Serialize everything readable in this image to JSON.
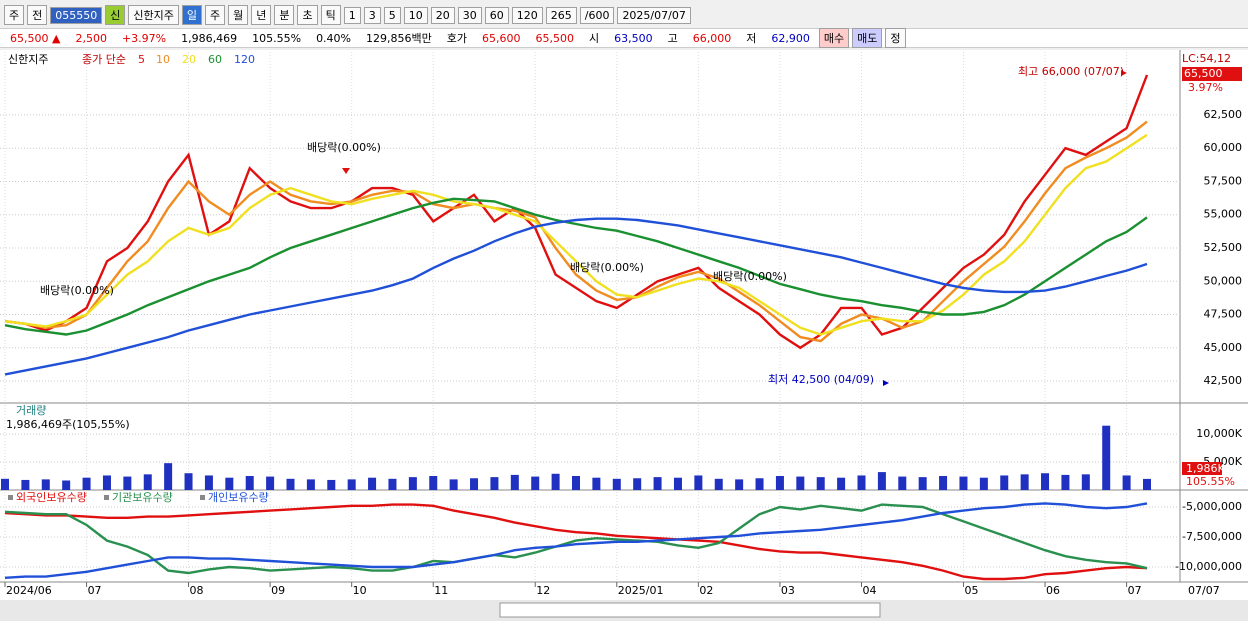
{
  "toolbar": {
    "items": [
      "주",
      "전",
      "055550",
      "신",
      "신한지주",
      "일",
      "주",
      "월",
      "년",
      "분",
      "초",
      "틱",
      "1",
      "3",
      "5",
      "10",
      "20",
      "30",
      "60",
      "120",
      "265",
      "/600",
      "2025/07/07"
    ]
  },
  "quote": {
    "items": [
      {
        "text": "65,500 ▲",
        "color": "#e00000"
      },
      {
        "text": "2,500",
        "color": "#e00000"
      },
      {
        "text": "+3.97%",
        "color": "#e00000"
      },
      {
        "text": "1,986,469",
        "color": "#000000"
      },
      {
        "text": "105.55%",
        "color": "#000000"
      },
      {
        "text": "0.40%",
        "color": "#000000"
      },
      {
        "text": "129,856백만",
        "color": "#000000"
      },
      {
        "text": "호가",
        "color": "#000000"
      },
      {
        "text": "65,600",
        "color": "#e00000"
      },
      {
        "text": "65,500",
        "color": "#e00000"
      },
      {
        "text": "시",
        "color": "#000000"
      },
      {
        "text": "63,500",
        "color": "#0000c0"
      },
      {
        "text": "고",
        "color": "#000000"
      },
      {
        "text": "66,000",
        "color": "#e00000"
      },
      {
        "text": "저",
        "color": "#000000"
      },
      {
        "text": "62,900",
        "color": "#0000c0"
      }
    ],
    "buttons": [
      "매수",
      "매도",
      "정"
    ]
  },
  "chart_data": [
    {
      "type": "line",
      "name": "신한지주",
      "legend_prefix": "종가 단순",
      "ylim": [
        40850,
        67230
      ],
      "yticks": [
        {
          "value": 42500,
          "label": "42,500"
        },
        {
          "value": 45000,
          "label": "45,000"
        },
        {
          "value": 47500,
          "label": "47,500"
        },
        {
          "value": 50000,
          "label": "50,000"
        },
        {
          "value": 52500,
          "label": "52,500"
        },
        {
          "value": 55000,
          "label": "55,000"
        },
        {
          "value": 57500,
          "label": "57,500"
        },
        {
          "value": 60000,
          "label": "60,000"
        },
        {
          "value": 62500,
          "label": "62,500"
        }
      ],
      "right_labels": [
        "LC:54,12",
        "65,500",
        "3.97%"
      ],
      "annotations": [
        "배당락(0.00%)",
        "배당락(0.00%)",
        "배당락(0.00%)",
        "배당락(0.00%)",
        "최고 66,000 (07/07)",
        "최저 42,500 (04/09)"
      ],
      "series": [
        {
          "name": "5",
          "color": "#e01010",
          "values": [
            47000,
            46800,
            46300,
            47000,
            48000,
            51500,
            52500,
            54500,
            57500,
            59500,
            53500,
            54500,
            58500,
            57000,
            56000,
            55500,
            55500,
            56000,
            57000,
            57000,
            56500,
            54500,
            55500,
            56500,
            54500,
            55500,
            54000,
            50500,
            49500,
            48500,
            48000,
            49000,
            50000,
            50500,
            51000,
            49500,
            48500,
            47500,
            46000,
            45000,
            46000,
            48000,
            48000,
            46000,
            46500,
            48000,
            49500,
            51000,
            52000,
            53500,
            56000,
            58000,
            60000,
            59500,
            60500,
            61500,
            65500
          ]
        },
        {
          "name": "10",
          "color": "#f08c20",
          "values": [
            47000,
            46800,
            46500,
            46700,
            47500,
            49500,
            51500,
            53000,
            55500,
            57500,
            56000,
            55000,
            56500,
            57500,
            56500,
            56000,
            55800,
            56000,
            56500,
            56800,
            56700,
            55800,
            55500,
            55800,
            55500,
            55300,
            54800,
            52500,
            50500,
            49300,
            48600,
            48800,
            49600,
            50300,
            50700,
            50200,
            49200,
            48200,
            47000,
            45800,
            45500,
            46800,
            47500,
            47200,
            46500,
            47000,
            48500,
            50000,
            51300,
            52600,
            54500,
            56600,
            58500,
            59300,
            60000,
            60800,
            62000
          ]
        },
        {
          "name": "20",
          "color": "#f0e020",
          "values": [
            47000,
            46800,
            46600,
            47000,
            47500,
            49000,
            50500,
            51500,
            53000,
            54000,
            53500,
            54000,
            55500,
            56500,
            57000,
            56500,
            56000,
            55800,
            56200,
            56500,
            56800,
            56500,
            56000,
            55800,
            55500,
            55000,
            54500,
            53000,
            51500,
            50000,
            49000,
            48800,
            49300,
            49800,
            50200,
            50000,
            49500,
            48500,
            47500,
            46500,
            46000,
            46500,
            47000,
            47200,
            47000,
            47000,
            47800,
            49000,
            50500,
            51500,
            53000,
            55000,
            57000,
            58500,
            59000,
            60000,
            61000
          ]
        },
        {
          "name": "60",
          "color": "#1a9030",
          "values": [
            46700,
            46400,
            46200,
            46000,
            46300,
            46900,
            47500,
            48200,
            48800,
            49400,
            50000,
            50500,
            51000,
            51800,
            52500,
            53000,
            53500,
            54000,
            54500,
            55000,
            55500,
            55900,
            56200,
            56100,
            56000,
            55500,
            55000,
            54600,
            54300,
            54000,
            53800,
            53400,
            53000,
            52500,
            52000,
            51500,
            51000,
            50400,
            49800,
            49400,
            49000,
            48700,
            48500,
            48200,
            48000,
            47700,
            47500,
            47500,
            47700,
            48200,
            49000,
            50000,
            51000,
            52000,
            53000,
            53700,
            54800
          ]
        },
        {
          "name": "120",
          "color": "#2050d8",
          "values": [
            43000,
            43300,
            43600,
            43900,
            44200,
            44600,
            45000,
            45400,
            45800,
            46300,
            46700,
            47100,
            47500,
            47800,
            48100,
            48400,
            48700,
            49000,
            49300,
            49700,
            50200,
            51000,
            51700,
            52300,
            53000,
            53600,
            54100,
            54400,
            54600,
            54700,
            54700,
            54600,
            54400,
            54200,
            53900,
            53600,
            53300,
            53000,
            52700,
            52400,
            52100,
            51800,
            51400,
            51000,
            50600,
            50200,
            49800,
            49500,
            49300,
            49200,
            49200,
            49300,
            49600,
            50000,
            50400,
            50800,
            51300
          ]
        }
      ]
    },
    {
      "type": "bar",
      "name": "거래량",
      "subtitle": "1,986,469주(105,55%)",
      "color": "#2030c0",
      "ylim": [
        0,
        15200000
      ],
      "yticks": [
        {
          "value": 5000000,
          "label": "5,000K"
        },
        {
          "value": 10000000,
          "label": "10,000K"
        }
      ],
      "right_labels": [
        "1,986K",
        "105.55%"
      ],
      "values": [
        2000000,
        1800000,
        1900000,
        1700000,
        2200000,
        2600000,
        2400000,
        2800000,
        4800000,
        3000000,
        2600000,
        2200000,
        2500000,
        2400000,
        2000000,
        1900000,
        1800000,
        1900000,
        2200000,
        2000000,
        2300000,
        2500000,
        1900000,
        2100000,
        2300000,
        2700000,
        2400000,
        2900000,
        2500000,
        2200000,
        2000000,
        2100000,
        2300000,
        2200000,
        2600000,
        2000000,
        1900000,
        2100000,
        2500000,
        2400000,
        2300000,
        2200000,
        2600000,
        3200000,
        2400000,
        2300000,
        2500000,
        2400000,
        2200000,
        2600000,
        2800000,
        3000000,
        2700000,
        2800000,
        11500000,
        2600000,
        1986469
      ]
    },
    {
      "type": "line",
      "ylim": [
        -11250000,
        -3750000
      ],
      "yticks": [
        {
          "value": -10000000,
          "label": "-10,000,000"
        },
        {
          "value": -7500000,
          "label": "-7,500,000"
        },
        {
          "value": -5000000,
          "label": "-5,000,000"
        }
      ],
      "xticks": [
        {
          "value": 0,
          "label": "2024/06"
        },
        {
          "value": 4,
          "label": "07"
        },
        {
          "value": 9,
          "label": "08"
        },
        {
          "value": 13,
          "label": "09"
        },
        {
          "value": 17,
          "label": "10"
        },
        {
          "value": 21,
          "label": "11"
        },
        {
          "value": 26,
          "label": "12"
        },
        {
          "value": 30,
          "label": "2025/01"
        },
        {
          "value": 34,
          "label": "02"
        },
        {
          "value": 38,
          "label": "03"
        },
        {
          "value": 42,
          "label": "04"
        },
        {
          "value": 47,
          "label": "05"
        },
        {
          "value": 51,
          "label": "06"
        },
        {
          "value": 55,
          "label": "07"
        }
      ],
      "x_end_label": "07/07",
      "series": [
        {
          "name": "외국인보유수량",
          "color": "#e01010",
          "values": [
            -5500000,
            -5600000,
            -5700000,
            -5700000,
            -5800000,
            -5900000,
            -5900000,
            -5800000,
            -5800000,
            -5700000,
            -5600000,
            -5500000,
            -5400000,
            -5300000,
            -5200000,
            -5100000,
            -5000000,
            -4900000,
            -4900000,
            -4800000,
            -4800000,
            -4900000,
            -5300000,
            -5600000,
            -5900000,
            -6300000,
            -6600000,
            -6900000,
            -7100000,
            -7200000,
            -7400000,
            -7500000,
            -7600000,
            -7700000,
            -7800000,
            -7900000,
            -8200000,
            -8500000,
            -8700000,
            -8800000,
            -8800000,
            -9000000,
            -9200000,
            -9400000,
            -9600000,
            -9900000,
            -10300000,
            -10800000,
            -11000000,
            -11000000,
            -10900000,
            -10600000,
            -10500000,
            -10300000,
            -10100000,
            -10000000,
            -10100000
          ]
        },
        {
          "name": "기관보유수량",
          "color": "#2a9050",
          "values": [
            -5400000,
            -5500000,
            -5600000,
            -5600000,
            -6500000,
            -7800000,
            -8300000,
            -9000000,
            -10300000,
            -10500000,
            -10200000,
            -10000000,
            -10100000,
            -10300000,
            -10200000,
            -10100000,
            -10000000,
            -10100000,
            -10300000,
            -10300000,
            -10000000,
            -9500000,
            -9600000,
            -9300000,
            -9000000,
            -9200000,
            -8800000,
            -8300000,
            -7800000,
            -7600000,
            -7700000,
            -7800000,
            -7900000,
            -8200000,
            -8400000,
            -8000000,
            -6800000,
            -5600000,
            -5000000,
            -5200000,
            -4900000,
            -5100000,
            -5300000,
            -4800000,
            -4900000,
            -5000000,
            -5600000,
            -6200000,
            -6800000,
            -7400000,
            -8000000,
            -8600000,
            -9100000,
            -9400000,
            -9600000,
            -9700000,
            -10100000
          ]
        },
        {
          "name": "개인보유수량",
          "color": "#2050d8",
          "values": [
            -10900000,
            -10800000,
            -10800000,
            -10600000,
            -10400000,
            -10100000,
            -9800000,
            -9500000,
            -9200000,
            -9200000,
            -9300000,
            -9300000,
            -9400000,
            -9500000,
            -9600000,
            -9700000,
            -9800000,
            -9900000,
            -10000000,
            -10000000,
            -10000000,
            -9800000,
            -9600000,
            -9300000,
            -9000000,
            -8600000,
            -8400000,
            -8300000,
            -8100000,
            -8000000,
            -7900000,
            -7900000,
            -7800000,
            -7700000,
            -7600000,
            -7500000,
            -7400000,
            -7200000,
            -7100000,
            -7000000,
            -6900000,
            -6700000,
            -6500000,
            -6300000,
            -6100000,
            -5800000,
            -5500000,
            -5300000,
            -5100000,
            -5000000,
            -4800000,
            -4700000,
            -4800000,
            -5000000,
            -5100000,
            -5000000,
            -4700000
          ]
        }
      ]
    }
  ]
}
